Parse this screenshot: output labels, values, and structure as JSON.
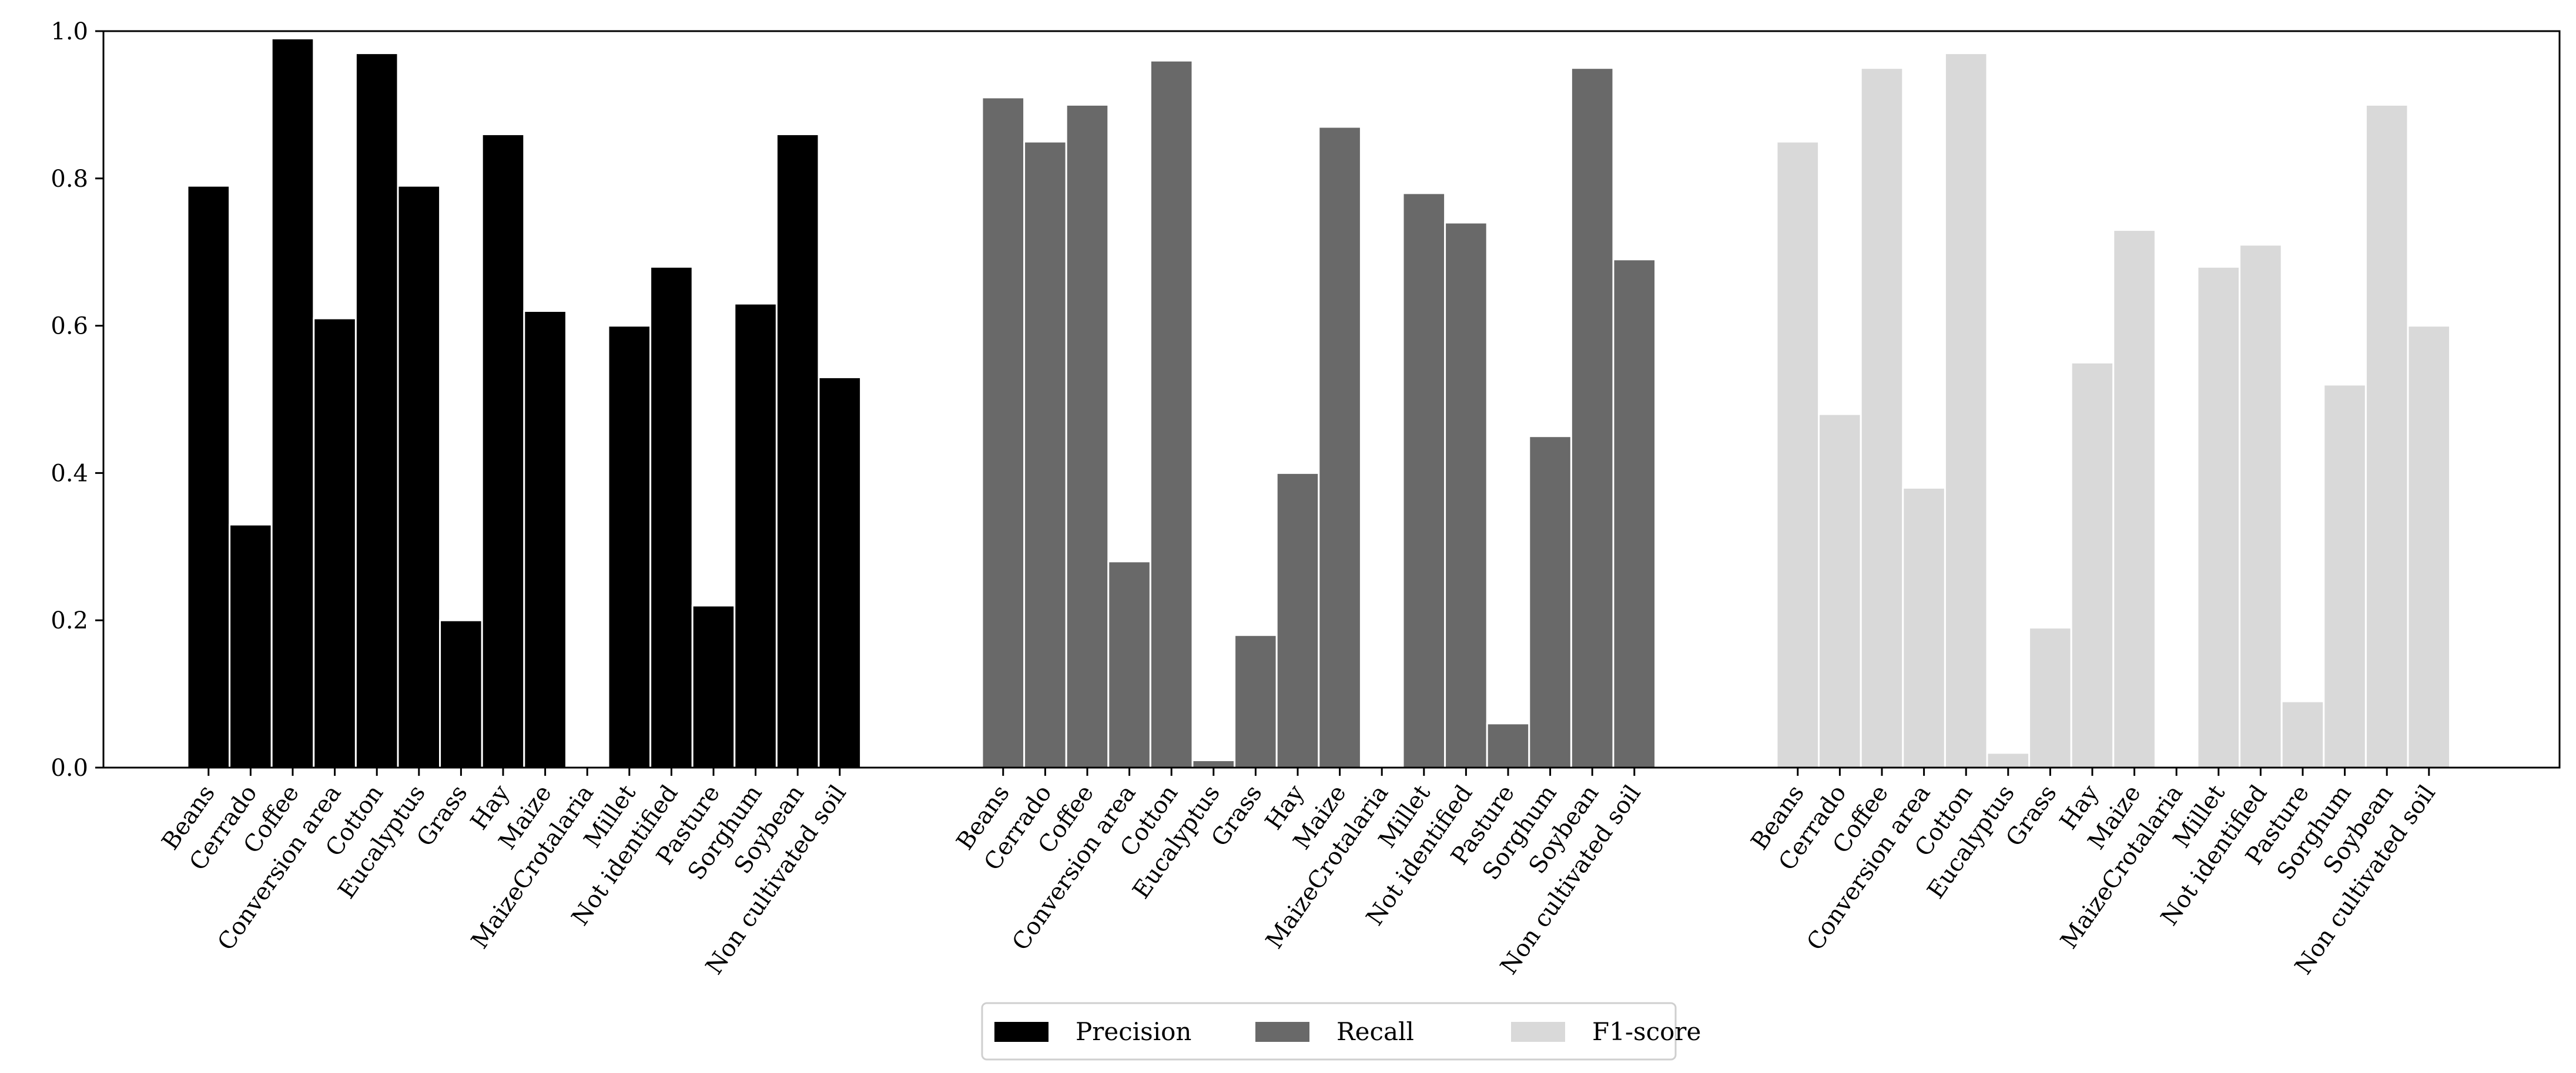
{
  "chart_data": {
    "type": "bar",
    "categories": [
      "Beans",
      "Cerrado",
      "Coffee",
      "Conversion area",
      "Cotton",
      "Eucalyptus",
      "Grass",
      "Hay",
      "Maize",
      "MaizeCrotalaria",
      "Millet",
      "Not identified",
      "Pasture",
      "Sorghum",
      "Soybean",
      "Non cultivated soil"
    ],
    "series": [
      {
        "name": "Precision",
        "color": "#000000",
        "values": [
          0.79,
          0.33,
          0.99,
          0.61,
          0.97,
          0.79,
          0.2,
          0.86,
          0.62,
          0.0,
          0.6,
          0.68,
          0.22,
          0.63,
          0.86,
          0.53
        ]
      },
      {
        "name": "Recall",
        "color": "#696969",
        "values": [
          0.91,
          0.85,
          0.9,
          0.28,
          0.96,
          0.01,
          0.18,
          0.4,
          0.87,
          0.0,
          0.78,
          0.74,
          0.06,
          0.45,
          0.95,
          0.69
        ]
      },
      {
        "name": "F1-score",
        "color": "#d9d9d9",
        "values": [
          0.85,
          0.48,
          0.95,
          0.38,
          0.97,
          0.02,
          0.19,
          0.55,
          0.73,
          0.0,
          0.68,
          0.71,
          0.09,
          0.52,
          0.9,
          0.6
        ]
      }
    ],
    "ylim": [
      0,
      1.0
    ],
    "yticks": [
      "0.0",
      "0.2",
      "0.4",
      "0.6",
      "0.8",
      "1.0"
    ],
    "grid": false,
    "legend": "bottom-center",
    "title": "",
    "xlabel": "",
    "ylabel": ""
  }
}
